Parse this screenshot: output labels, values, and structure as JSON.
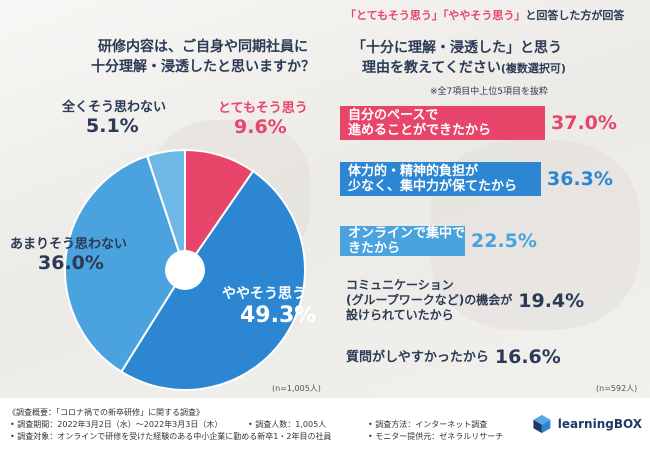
{
  "banner": {
    "bracket_1": "「とてもそう思う」「ややそう思う」",
    "suffix": "と回答した方が回答"
  },
  "question_left": {
    "line1": "研修内容は、ご自身や同期社員に",
    "line2": "十分理解・浸透したと思いますか？"
  },
  "question_right": {
    "line1": "「十分に理解・浸透した」と思う",
    "line2": "理由を教えてください",
    "line2_suffix": "(複数選択可)"
  },
  "note_top": "※全7項目中上位5項目を抜粋",
  "chart_data": [
    {
      "type": "pie",
      "slices": [
        {
          "label": "とてもそう思う",
          "value": 9.6,
          "value_text": "9.6%",
          "color": "#e8456a"
        },
        {
          "label": "ややそう思う",
          "value": 49.3,
          "value_text": "49.3%",
          "color": "#2d86d2"
        },
        {
          "label": "あまりそう思わない",
          "value": 36.0,
          "value_text": "36.0%",
          "color": "#4aa3de"
        },
        {
          "label": "全くそう思わない",
          "value": 5.1,
          "value_text": "5.1%",
          "color": "#6fb9e6"
        }
      ],
      "n_label": "(n=1,005人)"
    },
    {
      "type": "bar",
      "orientation": "horizontal",
      "categories": [
        "自分のペースで\n進めることができたから",
        "体力的・精神的負担が\n少なく、集中力が保てたから",
        "オンラインで集中できたから",
        "コミュニケーション\n(グループワークなど)の機会が\n設けられていたから",
        "質問がしやすかったから"
      ],
      "values": [
        37.0,
        36.3,
        22.5,
        19.4,
        16.6
      ],
      "value_texts": [
        "37.0%",
        "36.3%",
        "22.5%",
        "19.4%",
        "16.6%"
      ],
      "colors": [
        "#e8456a",
        "#2d86d2",
        "#4aa3de",
        "",
        ""
      ],
      "n_label": "(n=592人)"
    }
  ],
  "footer": {
    "title": "《調査概要：「コロナ禍での新卒研修」に関する調査》",
    "period": "• 調査期間：2022年3月2日（水）〜2022年3月3日（木）",
    "people": "• 調査人数：1,005人",
    "method": "• 調査方法：インターネット調査",
    "target": "• 調査対象：オンラインで研修を受けた経験のある中小企業に勤める新卒1・2年目の社員",
    "provider": "• モニター提供元：ゼネラルリサーチ"
  },
  "logo": {
    "text": "learningBOX",
    "icon": "cube-logo-icon"
  }
}
